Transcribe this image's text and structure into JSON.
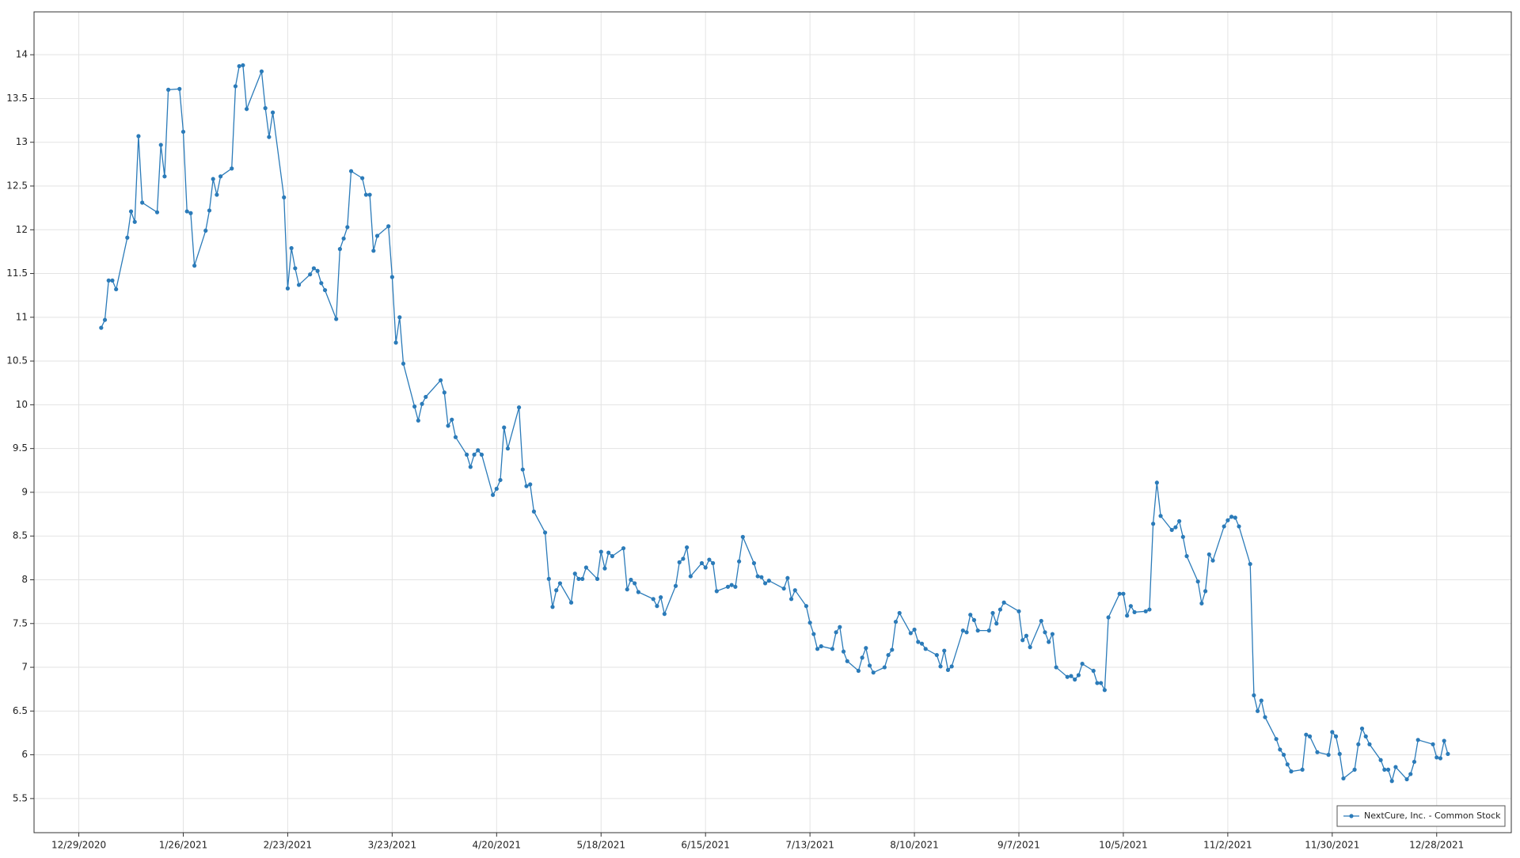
{
  "chart_data": {
    "type": "line",
    "x": [
      "1/4/2021",
      "1/5/2021",
      "1/6/2021",
      "1/7/2021",
      "1/8/2021",
      "1/11/2021",
      "1/12/2021",
      "1/13/2021",
      "1/14/2021",
      "1/15/2021",
      "1/19/2021",
      "1/20/2021",
      "1/21/2021",
      "1/22/2021",
      "1/25/2021",
      "1/26/2021",
      "1/27/2021",
      "1/28/2021",
      "1/29/2021",
      "2/1/2021",
      "2/2/2021",
      "2/3/2021",
      "2/4/2021",
      "2/5/2021",
      "2/8/2021",
      "2/9/2021",
      "2/10/2021",
      "2/11/2021",
      "2/12/2021",
      "2/16/2021",
      "2/17/2021",
      "2/18/2021",
      "2/19/2021",
      "2/22/2021",
      "2/23/2021",
      "2/24/2021",
      "2/25/2021",
      "2/26/2021",
      "3/1/2021",
      "3/2/2021",
      "3/3/2021",
      "3/4/2021",
      "3/5/2021",
      "3/8/2021",
      "3/9/2021",
      "3/10/2021",
      "3/11/2021",
      "3/12/2021",
      "3/15/2021",
      "3/16/2021",
      "3/17/2021",
      "3/18/2021",
      "3/19/2021",
      "3/22/2021",
      "3/23/2021",
      "3/24/2021",
      "3/25/2021",
      "3/26/2021",
      "3/29/2021",
      "3/30/2021",
      "3/31/2021",
      "4/1/2021",
      "4/5/2021",
      "4/6/2021",
      "4/7/2021",
      "4/8/2021",
      "4/9/2021",
      "4/12/2021",
      "4/13/2021",
      "4/14/2021",
      "4/15/2021",
      "4/16/2021",
      "4/19/2021",
      "4/20/2021",
      "4/21/2021",
      "4/22/2021",
      "4/23/2021",
      "4/26/2021",
      "4/27/2021",
      "4/28/2021",
      "4/29/2021",
      "4/30/2021",
      "5/3/2021",
      "5/4/2021",
      "5/5/2021",
      "5/6/2021",
      "5/7/2021",
      "5/10/2021",
      "5/11/2021",
      "5/12/2021",
      "5/13/2021",
      "5/14/2021",
      "5/17/2021",
      "5/18/2021",
      "5/19/2021",
      "5/20/2021",
      "5/21/2021",
      "5/24/2021",
      "5/25/2021",
      "5/26/2021",
      "5/27/2021",
      "5/28/2021",
      "6/1/2021",
      "6/2/2021",
      "6/3/2021",
      "6/4/2021",
      "6/7/2021",
      "6/8/2021",
      "6/9/2021",
      "6/10/2021",
      "6/11/2021",
      "6/14/2021",
      "6/15/2021",
      "6/16/2021",
      "6/17/2021",
      "6/18/2021",
      "6/21/2021",
      "6/22/2021",
      "6/23/2021",
      "6/24/2021",
      "6/25/2021",
      "6/28/2021",
      "6/29/2021",
      "6/30/2021",
      "7/1/2021",
      "7/2/2021",
      "7/6/2021",
      "7/7/2021",
      "7/8/2021",
      "7/9/2021",
      "7/12/2021",
      "7/13/2021",
      "7/14/2021",
      "7/15/2021",
      "7/16/2021",
      "7/19/2021",
      "7/20/2021",
      "7/21/2021",
      "7/22/2021",
      "7/23/2021",
      "7/26/2021",
      "7/27/2021",
      "7/28/2021",
      "7/29/2021",
      "7/30/2021",
      "8/2/2021",
      "8/3/2021",
      "8/4/2021",
      "8/5/2021",
      "8/6/2021",
      "8/9/2021",
      "8/10/2021",
      "8/11/2021",
      "8/12/2021",
      "8/13/2021",
      "8/16/2021",
      "8/17/2021",
      "8/18/2021",
      "8/19/2021",
      "8/20/2021",
      "8/23/2021",
      "8/24/2021",
      "8/25/2021",
      "8/26/2021",
      "8/27/2021",
      "8/30/2021",
      "8/31/2021",
      "9/1/2021",
      "9/2/2021",
      "9/3/2021",
      "9/7/2021",
      "9/8/2021",
      "9/9/2021",
      "9/10/2021",
      "9/13/2021",
      "9/14/2021",
      "9/15/2021",
      "9/16/2021",
      "9/17/2021",
      "9/20/2021",
      "9/21/2021",
      "9/22/2021",
      "9/23/2021",
      "9/24/2021",
      "9/27/2021",
      "9/28/2021",
      "9/29/2021",
      "9/30/2021",
      "10/1/2021",
      "10/4/2021",
      "10/5/2021",
      "10/6/2021",
      "10/7/2021",
      "10/8/2021",
      "10/11/2021",
      "10/12/2021",
      "10/13/2021",
      "10/14/2021",
      "10/15/2021",
      "10/18/2021",
      "10/19/2021",
      "10/20/2021",
      "10/21/2021",
      "10/22/2021",
      "10/25/2021",
      "10/26/2021",
      "10/27/2021",
      "10/28/2021",
      "10/29/2021",
      "11/1/2021",
      "11/2/2021",
      "11/3/2021",
      "11/4/2021",
      "11/5/2021",
      "11/8/2021",
      "11/9/2021",
      "11/10/2021",
      "11/11/2021",
      "11/12/2021",
      "11/15/2021",
      "11/16/2021",
      "11/17/2021",
      "11/18/2021",
      "11/19/2021",
      "11/22/2021",
      "11/23/2021",
      "11/24/2021",
      "11/26/2021",
      "11/29/2021",
      "11/30/2021",
      "12/1/2021",
      "12/2/2021",
      "12/3/2021",
      "12/6/2021",
      "12/7/2021",
      "12/8/2021",
      "12/9/2021",
      "12/10/2021",
      "12/13/2021",
      "12/14/2021",
      "12/15/2021",
      "12/16/2021",
      "12/17/2021",
      "12/20/2021",
      "12/21/2021",
      "12/22/2021",
      "12/23/2021",
      "12/27/2021",
      "12/28/2021",
      "12/29/2021",
      "12/30/2021",
      "12/31/2021"
    ],
    "series": [
      {
        "name": "NextCure, Inc. - Common Stock",
        "color": "#2b7bb9",
        "values": [
          10.88,
          10.97,
          11.42,
          11.42,
          11.32,
          11.91,
          12.21,
          12.09,
          13.07,
          12.31,
          12.2,
          12.97,
          12.61,
          13.6,
          13.61,
          13.12,
          12.21,
          12.19,
          11.59,
          11.99,
          12.22,
          12.58,
          12.4,
          12.61,
          12.7,
          13.64,
          13.87,
          13.88,
          13.38,
          13.81,
          13.39,
          13.06,
          13.34,
          12.37,
          11.33,
          11.79,
          11.56,
          11.37,
          11.49,
          11.56,
          11.53,
          11.39,
          11.31,
          10.98,
          11.78,
          11.9,
          12.03,
          12.67,
          12.59,
          12.4,
          12.4,
          11.76,
          11.93,
          12.04,
          11.46,
          10.71,
          11.0,
          10.47,
          9.98,
          9.82,
          10.01,
          10.09,
          10.28,
          10.14,
          9.76,
          9.83,
          9.63,
          9.43,
          9.29,
          9.43,
          9.48,
          9.43,
          8.97,
          9.04,
          9.14,
          9.74,
          9.5,
          9.97,
          9.26,
          9.07,
          9.09,
          8.78,
          8.54,
          8.01,
          7.69,
          7.88,
          7.96,
          7.74,
          8.07,
          8.01,
          8.01,
          8.14,
          8.01,
          8.32,
          8.13,
          8.31,
          8.27,
          8.36,
          7.89,
          8.0,
          7.96,
          7.86,
          7.78,
          7.7,
          7.8,
          7.61,
          7.93,
          8.2,
          8.24,
          8.37,
          8.04,
          8.19,
          8.14,
          8.23,
          8.19,
          7.87,
          7.92,
          7.94,
          7.92,
          8.21,
          8.49,
          8.19,
          8.04,
          8.03,
          7.96,
          7.99,
          7.9,
          8.02,
          7.78,
          7.88,
          7.7,
          7.51,
          7.38,
          7.21,
          7.24,
          7.21,
          7.4,
          7.46,
          7.18,
          7.07,
          6.96,
          7.11,
          7.22,
          7.02,
          6.94,
          7.0,
          7.14,
          7.2,
          7.52,
          7.62,
          7.39,
          7.43,
          7.29,
          7.27,
          7.21,
          7.14,
          7.01,
          7.19,
          6.97,
          7.01,
          7.42,
          7.4,
          7.6,
          7.54,
          7.42,
          7.42,
          7.62,
          7.5,
          7.66,
          7.74,
          7.64,
          7.31,
          7.36,
          7.23,
          7.53,
          7.4,
          7.29,
          7.38,
          7.0,
          6.89,
          6.9,
          6.86,
          6.91,
          7.04,
          6.96,
          6.82,
          6.82,
          6.74,
          7.57,
          7.84,
          7.84,
          7.59,
          7.7,
          7.63,
          7.64,
          7.66,
          8.64,
          9.11,
          8.73,
          8.57,
          8.6,
          8.67,
          8.49,
          8.27,
          7.98,
          7.73,
          7.87,
          8.29,
          8.22,
          8.61,
          8.68,
          8.72,
          8.71,
          8.61,
          8.18,
          6.68,
          6.5,
          6.62,
          6.43,
          6.18,
          6.06,
          6.0,
          5.89,
          5.81,
          5.83,
          6.23,
          6.21,
          6.03,
          6.0,
          6.26,
          6.21,
          6.01,
          5.73,
          5.83,
          6.12,
          6.3,
          6.21,
          6.12,
          5.94,
          5.83,
          5.83,
          5.7,
          5.86,
          5.72,
          5.78,
          5.92,
          6.17,
          6.12,
          5.97,
          5.96,
          6.16,
          6.01
        ]
      }
    ],
    "xlim": [
      "12/17/2020",
      "1/17/2022"
    ],
    "xticks": [
      "12/29/2020",
      "1/26/2021",
      "2/23/2021",
      "3/23/2021",
      "4/20/2021",
      "5/18/2021",
      "6/15/2021",
      "7/13/2021",
      "8/10/2021",
      "9/7/2021",
      "10/5/2021",
      "11/2/2021",
      "11/30/2021",
      "12/28/2021"
    ],
    "ylim": [
      5.11,
      14.49
    ],
    "yticks": [
      5.5,
      6,
      6.5,
      7,
      7.5,
      8,
      8.5,
      9,
      9.5,
      10,
      10.5,
      11,
      11.5,
      12,
      12.5,
      13,
      13.5,
      14
    ],
    "grid": true,
    "legend": "lower right"
  }
}
